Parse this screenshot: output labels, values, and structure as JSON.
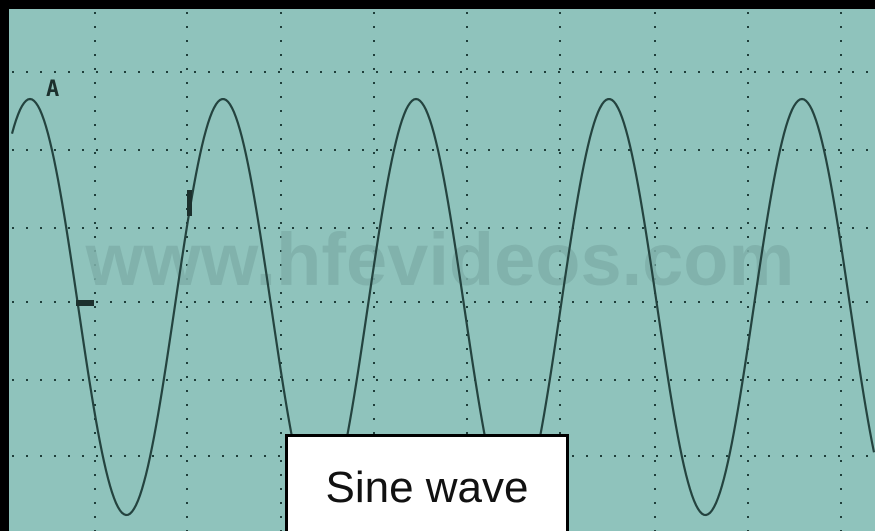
{
  "screen": {
    "channel_label": "A",
    "watermark": "www.hfevideos.com"
  },
  "caption": "Sine wave"
}
